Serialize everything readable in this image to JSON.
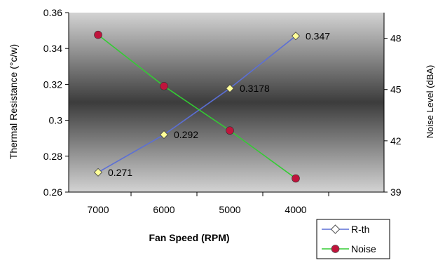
{
  "chart_data": {
    "type": "line",
    "x": [
      7000,
      6000,
      5000,
      4000
    ],
    "xlabel": "Fan Speed (RPM)",
    "ylabel": "Thermal Resistance (°c/w)",
    "y2label": "Noise Level (dBA)",
    "x_ticks": [
      "7000",
      "6000",
      "5000",
      "4000"
    ],
    "y_ticks": [
      "0.36",
      "0.34",
      "0.32",
      "0.3",
      "0.28",
      "0.26"
    ],
    "y2_ticks": [
      "48",
      "45",
      "42",
      "39"
    ],
    "ylim": [
      0.26,
      0.36
    ],
    "y2lim": [
      39,
      49.5
    ],
    "x_reversed": true,
    "grid": false,
    "legend_position": "bottom-right",
    "series": [
      {
        "name": "R-th",
        "axis": "left",
        "values": [
          0.271,
          0.292,
          0.3178,
          0.347
        ],
        "data_labels": [
          "0.271",
          "0.292",
          "0.3178",
          "0.347"
        ],
        "color": "#5b6fd6",
        "marker": "diamond",
        "marker_color": "#ffff99"
      },
      {
        "name": "Noise",
        "axis": "right",
        "values": [
          48.2,
          45.2,
          42.6,
          39.8
        ],
        "color": "#33cc33",
        "marker": "circle",
        "marker_color": "#c0143c"
      }
    ],
    "colors": {
      "plot_edge": "#d3d3d3",
      "plot_center": "#3c3c3c",
      "axis": "#000000"
    }
  }
}
